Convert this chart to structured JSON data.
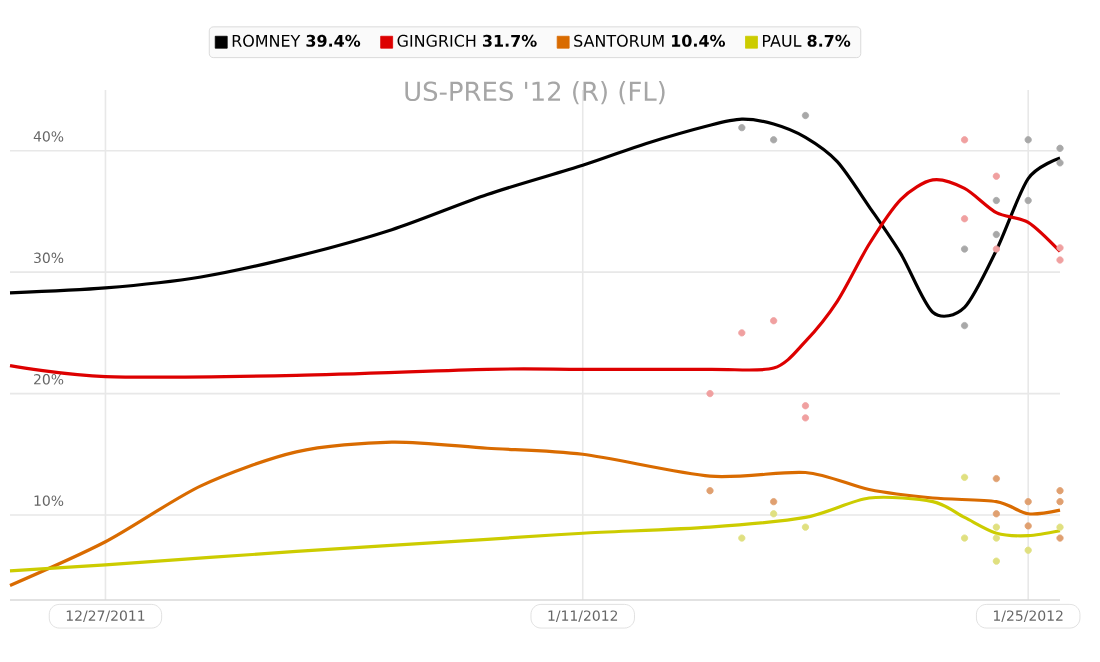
{
  "chart_data": {
    "type": "line",
    "title": "US-PRES '12 (R) (FL)",
    "xlim": [
      "2011-12-24",
      "2012-01-26"
    ],
    "xticks": [
      {
        "value": "2011-12-27",
        "label": "12/27/2011"
      },
      {
        "value": "2012-01-11",
        "label": "1/11/2012"
      },
      {
        "value": "2012-01-25",
        "label": "1/25/2012"
      }
    ],
    "ylim": [
      3,
      45
    ],
    "yticks": [
      {
        "value": 10,
        "label": "10%"
      },
      {
        "value": 20,
        "label": "20%"
      },
      {
        "value": 30,
        "label": "30%"
      },
      {
        "value": 40,
        "label": "40%"
      }
    ],
    "grid": true,
    "legend": "top",
    "series": [
      {
        "marker": "none",
        "name": "ROMNEY **39.4%**",
        "color": "#000000",
        "x": [
          "2011-12-24",
          "2011-12-27",
          "2011-12-30",
          "2012-01-02",
          "2012-01-05",
          "2012-01-08",
          "2012-01-11",
          "2012-01-13",
          "2012-01-15",
          "2012-01-16",
          "2012-01-17",
          "2012-01-18",
          "2012-01-19",
          "2012-01-20",
          "2012-01-21",
          "2012-01-22",
          "2012-01-23",
          "2012-01-24",
          "2012-01-25",
          "2012-01-26"
        ],
        "values": [
          28.3,
          28.7,
          29.6,
          31.3,
          33.5,
          36.4,
          38.8,
          40.6,
          42.1,
          42.6,
          42.2,
          41.1,
          39.1,
          35.4,
          31.5,
          26.7,
          27.1,
          31.8,
          37.7,
          39.4
        ]
      },
      {
        "marker": "none",
        "name": "GINGRICH **31.7%**",
        "color": "#dd0000",
        "x": [
          "2011-12-24",
          "2011-12-27",
          "2012-01-02",
          "2012-01-08",
          "2012-01-11",
          "2012-01-15",
          "2012-01-17",
          "2012-01-18",
          "2012-01-19",
          "2012-01-20",
          "2012-01-21",
          "2012-01-22",
          "2012-01-23",
          "2012-01-24",
          "2012-01-25",
          "2012-01-26"
        ],
        "values": [
          22.3,
          21.4,
          21.5,
          22.0,
          22.0,
          22.0,
          22.1,
          24.3,
          27.6,
          32.3,
          36.0,
          37.6,
          36.9,
          34.9,
          34.1,
          31.7
        ]
      },
      {
        "marker": "none",
        "name": "SANTORUM **10.4%**",
        "color": "#d96b00",
        "x": [
          "2011-12-24",
          "2011-12-27",
          "2011-12-30",
          "2012-01-02",
          "2012-01-05",
          "2012-01-08",
          "2012-01-11",
          "2012-01-15",
          "2012-01-18",
          "2012-01-20",
          "2012-01-22",
          "2012-01-24",
          "2012-01-25",
          "2012-01-26"
        ],
        "values": [
          4.2,
          7.8,
          12.4,
          15.2,
          16.0,
          15.5,
          15.0,
          13.2,
          13.5,
          12.1,
          11.4,
          11.1,
          10.1,
          10.4
        ]
      },
      {
        "marker": "none",
        "name": "PAUL **8.7%**",
        "color": "#cccc00",
        "x": [
          "2011-12-24",
          "2011-12-27",
          "2012-01-02",
          "2012-01-08",
          "2012-01-11",
          "2012-01-15",
          "2012-01-18",
          "2012-01-20",
          "2012-01-22",
          "2012-01-23",
          "2012-01-24",
          "2012-01-25",
          "2012-01-26"
        ],
        "values": [
          5.4,
          5.9,
          7.0,
          8.0,
          8.5,
          9.0,
          9.8,
          11.4,
          11.1,
          9.8,
          8.5,
          8.3,
          8.7
        ]
      },
      {
        "type": "scatter",
        "marker": "circle",
        "color": "#a8a8a8",
        "x": [
          "2012-01-16",
          "2012-01-17",
          "2012-01-18",
          "2012-01-23",
          "2012-01-23",
          "2012-01-24",
          "2012-01-24",
          "2012-01-25",
          "2012-01-25",
          "2012-01-26",
          "2012-01-26"
        ],
        "values": [
          41.9,
          40.9,
          42.9,
          25.6,
          31.9,
          35.9,
          33.1,
          40.9,
          35.9,
          40.2,
          39.0
        ]
      },
      {
        "type": "scatter",
        "marker": "circle",
        "color": "#f0a0a0",
        "x": [
          "2012-01-15",
          "2012-01-16",
          "2012-01-17",
          "2012-01-18",
          "2012-01-18",
          "2012-01-23",
          "2012-01-23",
          "2012-01-24",
          "2012-01-24",
          "2012-01-26",
          "2012-01-26"
        ],
        "values": [
          20.0,
          25.0,
          26.0,
          19.0,
          18.0,
          40.9,
          34.4,
          37.9,
          31.9,
          32.0,
          31.0
        ]
      },
      {
        "type": "scatter",
        "marker": "circle",
        "color": "#e0a070",
        "x": [
          "2012-01-15",
          "2012-01-17",
          "2012-01-24",
          "2012-01-24",
          "2012-01-25",
          "2012-01-25",
          "2012-01-26",
          "2012-01-26",
          "2012-01-26"
        ],
        "values": [
          12.0,
          11.1,
          13.0,
          10.1,
          11.1,
          9.1,
          12.0,
          11.1,
          8.1
        ]
      },
      {
        "type": "scatter",
        "marker": "circle",
        "color": "#e0e080",
        "x": [
          "2012-01-16",
          "2012-01-17",
          "2012-01-18",
          "2012-01-23",
          "2012-01-23",
          "2012-01-24",
          "2012-01-24",
          "2012-01-24",
          "2012-01-25",
          "2012-01-26"
        ],
        "values": [
          8.1,
          10.1,
          9.0,
          13.1,
          8.1,
          9.0,
          8.1,
          6.2,
          7.1,
          9.0
        ]
      }
    ]
  }
}
